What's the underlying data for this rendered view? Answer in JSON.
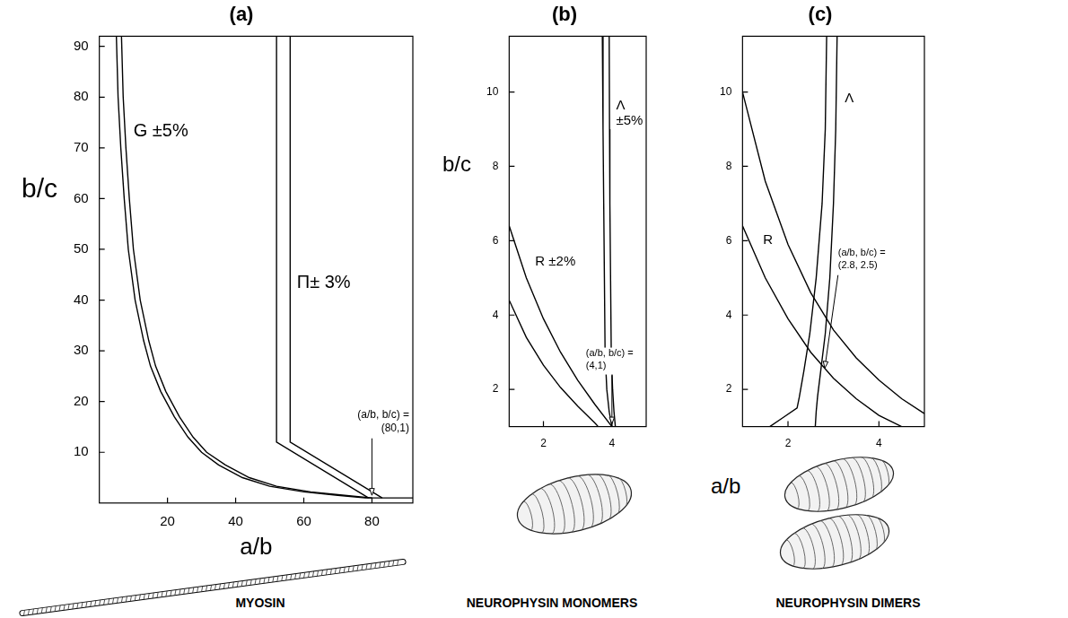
{
  "chart_data": [
    {
      "type": "line",
      "title": "(a)",
      "x_label": "a/b",
      "y_label": "b/c",
      "xlim": [
        0,
        92
      ],
      "xticks": [
        20,
        40,
        60,
        80
      ],
      "ylim": [
        0,
        92
      ],
      "yticks": [
        10,
        20,
        30,
        40,
        50,
        60,
        70,
        80,
        90
      ],
      "grid": false,
      "bands": [
        {
          "label": "G ±5%",
          "color": "#000000",
          "curves": [
            [
              [
                5,
                92
              ],
              [
                5.5,
                80
              ],
              [
                6.3,
                70
              ],
              [
                7.3,
                60
              ],
              [
                8.5,
                50
              ],
              [
                10.5,
                40
              ],
              [
                13,
                32
              ],
              [
                15,
                27
              ],
              [
                18,
                22
              ],
              [
                22,
                17
              ],
              [
                26,
                13
              ],
              [
                30,
                10
              ],
              [
                35,
                7.5
              ],
              [
                42,
                5
              ],
              [
                50,
                3.3
              ],
              [
                60,
                2.2
              ],
              [
                70,
                1.5
              ],
              [
                78,
                1
              ],
              [
                92,
                1
              ]
            ],
            [
              [
                6.5,
                92
              ],
              [
                7,
                80
              ],
              [
                7.8,
                70
              ],
              [
                8.8,
                60
              ],
              [
                10,
                50
              ],
              [
                12,
                40
              ],
              [
                14.5,
                32
              ],
              [
                16.5,
                27
              ],
              [
                19.5,
                22
              ],
              [
                23.5,
                17
              ],
              [
                27.5,
                13
              ],
              [
                31.5,
                10
              ],
              [
                37,
                7.5
              ],
              [
                44,
                5
              ],
              [
                52,
                3.3
              ],
              [
                62,
                2.2
              ],
              [
                72,
                1.5
              ],
              [
                80,
                1
              ]
            ]
          ]
        },
        {
          "label": "Π± 3%",
          "color": "#000000",
          "curves": [
            [
              [
                52,
                92
              ],
              [
                52,
                12
              ],
              [
                79,
                1
              ]
            ],
            [
              [
                56,
                92
              ],
              [
                56,
                12
              ],
              [
                83,
                1
              ]
            ]
          ]
        }
      ],
      "annotations": [
        {
          "text": "(a/b, b/c) = (80,1)",
          "x": 80,
          "y": 1
        }
      ],
      "caption": "MYOSIN"
    },
    {
      "type": "line",
      "title": "(b)",
      "y_label": "b/c",
      "xlim": [
        1,
        5
      ],
      "xticks": [
        2,
        4
      ],
      "ylim": [
        1,
        11.5
      ],
      "yticks": [
        2,
        4,
        6,
        8,
        10
      ],
      "grid": false,
      "bands": [
        {
          "label": "Λ ±5%",
          "color": "#000000",
          "curves": [
            [
              [
                3.72,
                11.5
              ],
              [
                3.74,
                9
              ],
              [
                3.76,
                7
              ],
              [
                3.78,
                5
              ],
              [
                3.8,
                3
              ],
              [
                3.85,
                2
              ],
              [
                3.92,
                1.4
              ],
              [
                4,
                1
              ]
            ],
            [
              [
                3.92,
                11.5
              ],
              [
                3.93,
                9
              ],
              [
                3.94,
                7
              ],
              [
                3.96,
                5
              ],
              [
                3.98,
                3
              ],
              [
                4.02,
                2
              ],
              [
                4.06,
                1.4
              ],
              [
                4.1,
                1
              ]
            ]
          ]
        },
        {
          "label": "R ±2%",
          "color": "#000000",
          "curves": [
            [
              [
                1,
                4.4
              ],
              [
                1.5,
                3.4
              ],
              [
                2,
                2.65
              ],
              [
                2.5,
                2.05
              ],
              [
                3,
                1.55
              ],
              [
                3.5,
                1.1
              ],
              [
                3.6,
                1
              ]
            ],
            [
              [
                1,
                6.4
              ],
              [
                1.5,
                5
              ],
              [
                2,
                3.9
              ],
              [
                2.5,
                3
              ],
              [
                3,
                2.25
              ],
              [
                3.5,
                1.6
              ],
              [
                4,
                1
              ]
            ]
          ]
        }
      ],
      "annotations": [
        {
          "text": "(a/b, b/c) = (4,1)",
          "x": 4,
          "y": 1
        }
      ],
      "caption": "NEUROPHYSIN MONOMERS"
    },
    {
      "type": "line",
      "title": "(c)",
      "x_label": "a/b",
      "xlim": [
        1,
        5
      ],
      "xticks": [
        2,
        4
      ],
      "ylim": [
        1,
        11.5
      ],
      "yticks": [
        2,
        4,
        6,
        8,
        10
      ],
      "grid": false,
      "bands": [
        {
          "label": "Λ",
          "color": "#000000",
          "curves": [
            [
              [
                2.85,
                11.5
              ],
              [
                2.82,
                9
              ],
              [
                2.75,
                7
              ],
              [
                2.62,
                5
              ],
              [
                2.48,
                3.5
              ],
              [
                2.35,
                2.5
              ],
              [
                2.25,
                1.8
              ],
              [
                2.2,
                1.5
              ],
              [
                1.9,
                1.25
              ],
              [
                1.6,
                1
              ]
            ],
            [
              [
                3.08,
                11.5
              ],
              [
                3.05,
                9
              ],
              [
                3,
                7
              ],
              [
                2.92,
                5
              ],
              [
                2.82,
                3.5
              ],
              [
                2.72,
                2.5
              ],
              [
                2.65,
                1.8
              ],
              [
                2.62,
                1.4
              ],
              [
                2.6,
                1
              ]
            ]
          ]
        },
        {
          "label": "R",
          "color": "#000000",
          "curves": [
            [
              [
                1,
                6.4
              ],
              [
                1.5,
                5
              ],
              [
                2,
                3.9
              ],
              [
                2.5,
                3
              ],
              [
                3,
                2.3
              ],
              [
                3.5,
                1.75
              ],
              [
                4,
                1.3
              ],
              [
                4.5,
                1
              ]
            ],
            [
              [
                1,
                10
              ],
              [
                1.5,
                7.6
              ],
              [
                2,
                5.9
              ],
              [
                2.5,
                4.6
              ],
              [
                3,
                3.6
              ],
              [
                3.5,
                2.85
              ],
              [
                4,
                2.25
              ],
              [
                4.5,
                1.75
              ],
              [
                5,
                1.35
              ]
            ]
          ]
        }
      ],
      "annotations": [
        {
          "text": "(a/b, b/c) = (2.8, 2.5)",
          "x": 2.8,
          "y": 2.5
        }
      ],
      "caption": "NEUROPHYSIN DIMERS"
    }
  ]
}
